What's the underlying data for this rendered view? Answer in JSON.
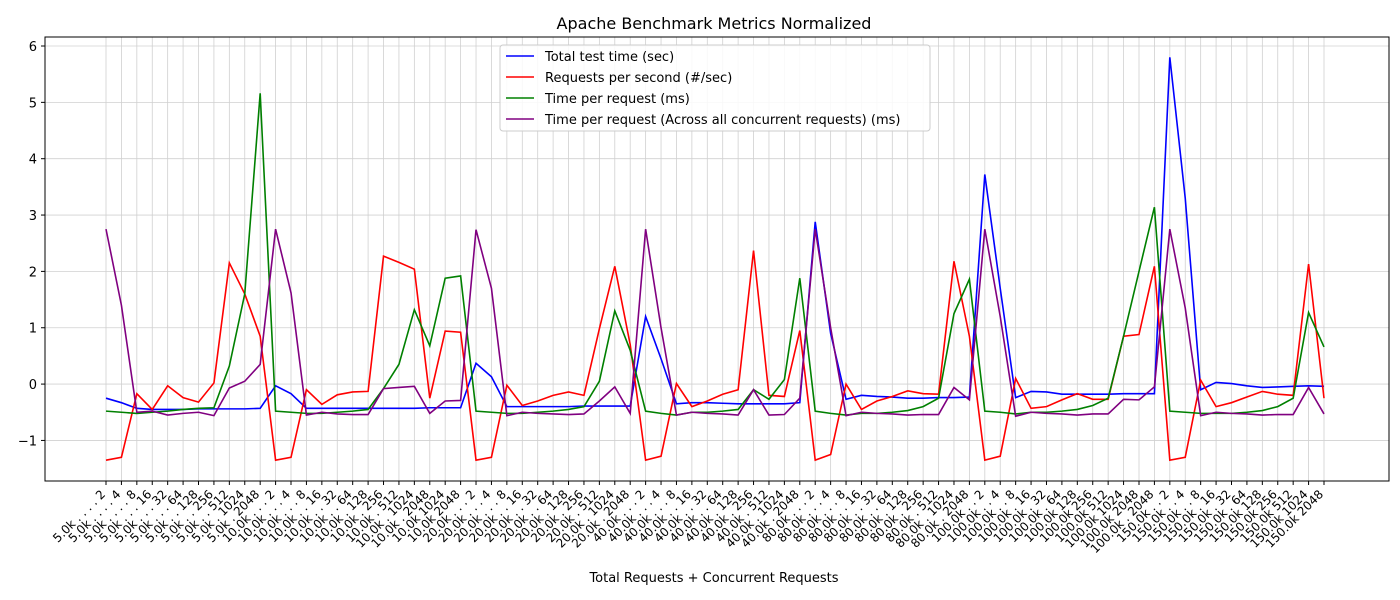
{
  "chart_data": {
    "type": "line",
    "title": "Apache Benchmark Metrics Normalized",
    "xlabel": "Total Requests + Concurrent Requests",
    "categories": [
      "5.0k . . . . 2",
      "5.0k . . . . 4",
      "5.0k . . . . 8",
      "5.0k . . . 16",
      "5.0k . . . 32",
      "5.0k . . . 64",
      "5.0k . . 128",
      "5.0k . . 256",
      "5.0k . . 512",
      "5.0k . 1024",
      "5.0k . 2048",
      "10.0k . . . 2",
      "10.0k . . . 4",
      "10.0k . . . 8",
      "10.0k . . 16",
      "10.0k . . 32",
      "10.0k . . 64",
      "10.0k . 128",
      "10.0k . 256",
      "10.0k . 512",
      "10.0k . 1024",
      "10.0k . 2048",
      "10.0k 1024",
      "10.0k 2048",
      "20.0k . . . 2",
      "20.0k . . . 4",
      "20.0k . . . 8",
      "20.0k . . 16",
      "20.0k . . 32",
      "20.0k . . 64",
      "20.0k . 128",
      "20.0k . 256",
      "20.0k . 512",
      "20.0k . 1024",
      "20.0k . 2048",
      "40.0k . . . 2",
      "40.0k . . . 4",
      "40.0k . . . 8",
      "40.0k . . 16",
      "40.0k . . 32",
      "40.0k . . 64",
      "40.0k . 128",
      "40.0k . 256",
      "40.0k . 512",
      "40.0k . 1024",
      "40.0k . 2048",
      "80.0k . . . 2",
      "80.0k . . . 4",
      "80.0k . . . 8",
      "80.0k . . 16",
      "80.0k . . 32",
      "80.0k . . 64",
      "80.0k . 128",
      "80.0k . 256",
      "80.0k . 512",
      "80.0k . 1024",
      "80.0k . 2048",
      "100.0k . . 2",
      "100.0k . . 4",
      "100.0k . . 8",
      "100.0k . 16",
      "100.0k . 32",
      "100.0k . 64",
      "100.0k 128",
      "100.0k 256",
      "100.0k 512",
      "100.0k 1024",
      "100.0k 2048",
      "100.0k . 2048",
      "150.0k . . 2",
      "150.0k . . 4",
      "150.0k . . 8",
      "150.0k . 16",
      "150.0k . 32",
      "150.0k . 64",
      "150.0k 128",
      "150.0k 256",
      "150.0k 512",
      "150.0k 1024",
      "150.0k 2048"
    ],
    "series": [
      {
        "name": "Total test time (sec)",
        "color": "#0000ff",
        "values": [
          -0.25,
          -0.33,
          -0.43,
          -0.45,
          -0.45,
          -0.45,
          -0.44,
          -0.44,
          -0.44,
          -0.44,
          -0.43,
          -0.03,
          -0.17,
          -0.43,
          -0.43,
          -0.43,
          -0.43,
          -0.43,
          -0.43,
          -0.43,
          -0.43,
          -0.42,
          -0.42,
          -0.42,
          0.37,
          0.13,
          -0.4,
          -0.4,
          -0.4,
          -0.4,
          -0.4,
          -0.39,
          -0.39,
          -0.39,
          -0.39,
          1.2,
          0.45,
          -0.35,
          -0.33,
          -0.33,
          -0.34,
          -0.35,
          -0.35,
          -0.35,
          -0.35,
          -0.33,
          2.88,
          0.9,
          -0.27,
          -0.2,
          -0.22,
          -0.23,
          -0.25,
          -0.25,
          -0.24,
          -0.24,
          -0.23,
          3.72,
          1.7,
          -0.24,
          -0.13,
          -0.14,
          -0.18,
          -0.18,
          -0.18,
          -0.18,
          -0.17,
          -0.17,
          -0.17,
          5.8,
          3.3,
          -0.1,
          0.03,
          0.01,
          -0.03,
          -0.06,
          -0.05,
          -0.04,
          -0.03,
          -0.04
        ]
      },
      {
        "name": "Requests per second (#/sec)",
        "color": "#ff0000",
        "values": [
          -1.35,
          -1.3,
          -0.17,
          -0.45,
          -0.03,
          -0.24,
          -0.32,
          0.02,
          2.15,
          1.6,
          0.85,
          -1.35,
          -1.3,
          -0.1,
          -0.36,
          -0.19,
          -0.14,
          -0.13,
          2.27,
          2.16,
          2.04,
          -0.25,
          0.94,
          0.92,
          -1.35,
          -1.3,
          -0.02,
          -0.38,
          -0.3,
          -0.2,
          -0.14,
          -0.2,
          0.98,
          2.09,
          0.7,
          -1.35,
          -1.28,
          0.01,
          -0.4,
          -0.3,
          -0.18,
          -0.1,
          2.37,
          -0.2,
          -0.22,
          0.95,
          -1.35,
          -1.25,
          0.0,
          -0.45,
          -0.3,
          -0.22,
          -0.12,
          -0.17,
          -0.18,
          2.18,
          0.85,
          -1.35,
          -1.28,
          0.1,
          -0.43,
          -0.4,
          -0.28,
          -0.17,
          -0.27,
          -0.27,
          0.85,
          0.88,
          2.09,
          -1.35,
          -1.3,
          0.07,
          -0.4,
          -0.33,
          -0.23,
          -0.13,
          -0.18,
          -0.2,
          2.13,
          -0.25
        ]
      },
      {
        "name": "Time per request (ms)",
        "color": "#008000",
        "values": [
          -0.48,
          -0.5,
          -0.52,
          -0.5,
          -0.48,
          -0.45,
          -0.43,
          -0.42,
          0.32,
          1.6,
          5.16,
          -0.48,
          -0.5,
          -0.52,
          -0.52,
          -0.5,
          -0.48,
          -0.45,
          -0.08,
          0.35,
          1.32,
          0.68,
          1.88,
          1.92,
          -0.48,
          -0.5,
          -0.52,
          -0.52,
          -0.5,
          -0.48,
          -0.45,
          -0.4,
          0.05,
          1.3,
          0.6,
          -0.48,
          -0.52,
          -0.55,
          -0.5,
          -0.5,
          -0.48,
          -0.45,
          -0.1,
          -0.27,
          0.08,
          1.88,
          -0.48,
          -0.52,
          -0.55,
          -0.52,
          -0.52,
          -0.5,
          -0.47,
          -0.4,
          -0.25,
          1.25,
          1.86,
          -0.48,
          -0.5,
          -0.53,
          -0.5,
          -0.5,
          -0.48,
          -0.45,
          -0.38,
          -0.25,
          0.85,
          2.0,
          3.14,
          -0.48,
          -0.5,
          -0.52,
          -0.52,
          -0.52,
          -0.5,
          -0.47,
          -0.4,
          -0.25,
          1.27,
          0.66
        ]
      },
      {
        "name": "Time per request (Across all concurrent requests) (ms)",
        "color": "#800080",
        "values": [
          2.75,
          1.4,
          -0.5,
          -0.48,
          -0.55,
          -0.52,
          -0.5,
          -0.56,
          -0.07,
          0.05,
          0.35,
          2.75,
          1.62,
          -0.55,
          -0.5,
          -0.53,
          -0.54,
          -0.54,
          -0.08,
          -0.06,
          -0.04,
          -0.52,
          -0.3,
          -0.29,
          2.74,
          1.7,
          -0.56,
          -0.5,
          -0.52,
          -0.53,
          -0.54,
          -0.53,
          -0.3,
          -0.05,
          -0.52,
          2.75,
          1.0,
          -0.55,
          -0.5,
          -0.52,
          -0.53,
          -0.55,
          -0.1,
          -0.55,
          -0.54,
          -0.25,
          2.75,
          1.0,
          -0.56,
          -0.5,
          -0.52,
          -0.53,
          -0.55,
          -0.54,
          -0.54,
          -0.06,
          -0.28,
          2.75,
          1.2,
          -0.57,
          -0.5,
          -0.52,
          -0.53,
          -0.55,
          -0.53,
          -0.53,
          -0.27,
          -0.28,
          -0.05,
          2.75,
          1.35,
          -0.56,
          -0.5,
          -0.52,
          -0.53,
          -0.55,
          -0.54,
          -0.54,
          -0.06,
          -0.53
        ]
      }
    ],
    "ylim": [
      -1.72,
      6.16
    ],
    "yticks": [
      {
        "value": -1,
        "label": "−1"
      },
      0,
      1,
      2,
      3,
      4,
      5,
      6
    ],
    "grid": true,
    "legend": "upper center"
  }
}
